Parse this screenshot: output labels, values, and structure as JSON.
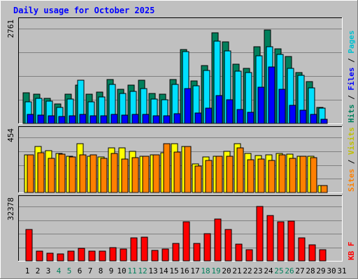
{
  "chart_data": {
    "type": "bar",
    "title": "Daily usage for October 2025",
    "days": [
      "1",
      "2",
      "3",
      "4",
      "5",
      "6",
      "7",
      "8",
      "9",
      "10",
      "11",
      "12",
      "13",
      "14",
      "15",
      "16",
      "17",
      "18",
      "19",
      "20",
      "21",
      "22",
      "23",
      "24",
      "25",
      "26",
      "27",
      "28",
      "29",
      "30",
      "31"
    ],
    "weekend_days": [
      4,
      5,
      11,
      12,
      18,
      19,
      25,
      26
    ],
    "panels": [
      {
        "id": "hits",
        "ymax_label": "2761",
        "ymax": 2761,
        "series": [
          {
            "name": "Hits",
            "color": "#00805c",
            "values": [
              900,
              860,
              740,
              560,
              860,
              1110,
              850,
              910,
              1280,
              1000,
              1120,
              1260,
              880,
              860,
              1280,
              2150,
              1240,
              1690,
              2630,
              2380,
              1720,
              1600,
              2240,
              2720,
              2170,
              1950,
              1480,
              1220,
              470,
              0,
              0
            ]
          },
          {
            "name": "Files",
            "color": "#00e0ff",
            "values": [
              630,
              740,
              650,
              460,
              720,
              1260,
              620,
              770,
              1140,
              880,
              940,
              1010,
              710,
              690,
              1130,
              2090,
              1100,
              1550,
              2400,
              2120,
              1520,
              1480,
              1960,
              2230,
              2000,
              1610,
              1400,
              1040,
              450,
              0,
              0
            ]
          },
          {
            "name": "Pages",
            "color": "#0000ff",
            "values": [
              260,
              250,
              230,
              200,
              230,
              270,
              220,
              230,
              270,
              250,
              270,
              260,
              230,
              230,
              280,
              1010,
              300,
              450,
              810,
              700,
              400,
              320,
              1050,
              1650,
              990,
              520,
              380,
              270,
              120,
              0,
              0
            ]
          }
        ],
        "legend": [
          {
            "text": "Hits",
            "color": "#00805c"
          },
          {
            "text": "Files",
            "color": "#0000ff"
          },
          {
            "text": "Pages",
            "color": "#00c0d0"
          }
        ]
      },
      {
        "id": "visits",
        "ymax_label": "454",
        "ymax": 454,
        "series": [
          {
            "name": "Visits",
            "color": "#ffff00",
            "values": [
              310,
              380,
              345,
              320,
              300,
              400,
              300,
              295,
              370,
              370,
              340,
              300,
              310,
              325,
              400,
              380,
              235,
              295,
              300,
              340,
              400,
              320,
              305,
              310,
              320,
              315,
              300,
              300,
              60,
              0,
              0
            ]
          },
          {
            "name": "Sites",
            "color": "#ff8000",
            "values": [
              310,
              325,
              280,
              315,
              295,
              310,
              310,
              280,
              320,
              275,
              290,
              300,
              310,
              400,
              335,
              380,
              220,
              265,
              300,
              300,
              370,
              270,
              275,
              265,
              310,
              280,
              300,
              290,
              60,
              0,
              0
            ]
          }
        ],
        "legend": [
          {
            "text": "Sites",
            "color": "#ff8000"
          },
          {
            "text": "Visits",
            "color": "#c0c000"
          }
        ]
      },
      {
        "id": "kbytes",
        "ymax_label": "32378",
        "ymax": 32378,
        "series": [
          {
            "name": "KBytes",
            "color": "#ff0000",
            "values": [
              18700,
              5900,
              4600,
              4200,
              5900,
              7500,
              5900,
              6000,
              7800,
              7000,
              13900,
              14300,
              6300,
              6900,
              10400,
              23100,
              10300,
              16300,
              24800,
              18700,
              10100,
              6600,
              32378,
              27100,
              23100,
              23700,
              13500,
              9600,
              6800,
              0,
              0
            ]
          }
        ],
        "legend": [
          {
            "text": "KB F",
            "color": "#ff0000"
          }
        ]
      }
    ]
  }
}
